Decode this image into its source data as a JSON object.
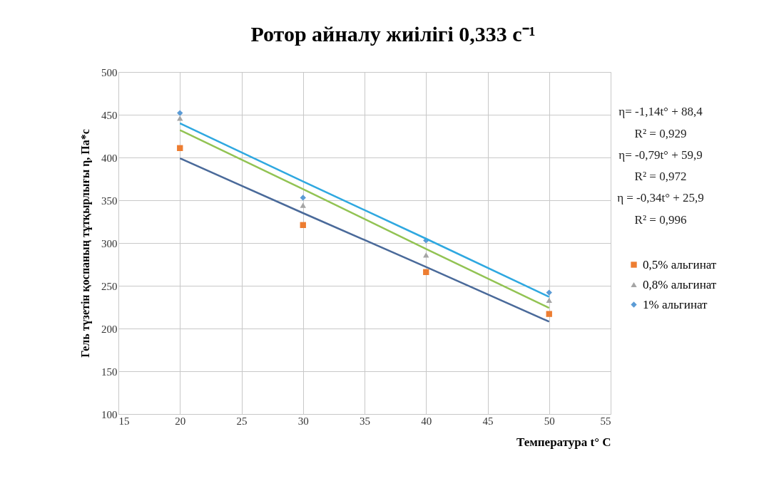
{
  "chart_data": {
    "type": "scatter",
    "title": "Ротор айналу жиілігі  0,333 с⁻¹",
    "xlabel": "Температура  t° С",
    "ylabel": "Гель түзетін қоспаның тұтқырлығы  η, Па*с",
    "x": [
      20,
      30,
      40,
      50
    ],
    "series": [
      {
        "name": "0,5% альгинат",
        "color": "#ed7d31",
        "marker": "square",
        "values": [
          411,
          321,
          266,
          217
        ]
      },
      {
        "name": "0,8% альгинат",
        "color": "#a5a5a5",
        "marker": "triangle",
        "values": [
          446,
          344,
          286,
          233
        ]
      },
      {
        "name": "1% альгинат",
        "color": "#5b9bd5",
        "marker": "diamond",
        "values": [
          452,
          353,
          303,
          242
        ]
      },
      {
        "type": "line",
        "color": "#2fa8e0",
        "line_style": "solid",
        "values": [
          440,
          372,
          305,
          237
        ]
      },
      {
        "type": "line",
        "color": "#92c353",
        "line_style": "solid",
        "values": [
          432,
          363,
          293,
          224
        ]
      },
      {
        "type": "line",
        "color": "#4a6a9a",
        "line_style": "solid",
        "values": [
          399,
          335,
          272,
          208
        ]
      }
    ],
    "annotations": [
      "η= -1,14t° + 88,4",
      "R² = 0,929",
      "η= -0,79t° + 59,9",
      "R² = 0,972",
      "η = -0,34t° + 25,9",
      "R² = 0,996"
    ],
    "xlim": [
      15,
      55
    ],
    "xticks": [
      15,
      20,
      25,
      30,
      35,
      40,
      45,
      50,
      55
    ],
    "ylim": [
      100,
      500
    ],
    "yticks": [
      100,
      150,
      200,
      250,
      300,
      350,
      400,
      450,
      500
    ],
    "grid": true,
    "legend": "right"
  }
}
